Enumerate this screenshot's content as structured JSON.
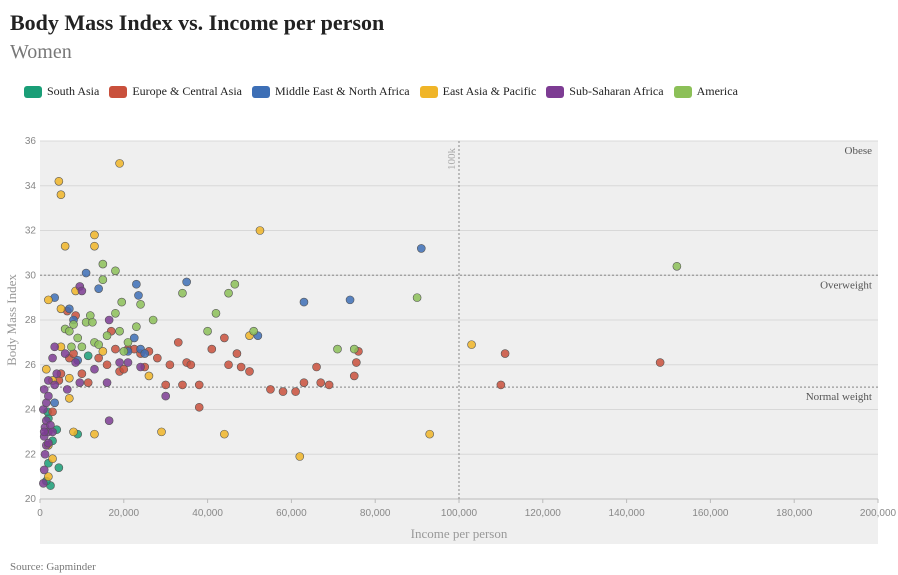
{
  "header": {
    "title": "Body Mass Index vs. Income per person",
    "subtitle": "Women"
  },
  "source": "Source: Gapminder",
  "chart_data": {
    "type": "scatter",
    "xlabel": "Income per person",
    "ylabel": "Body Mass Index",
    "xlim": [
      0,
      200000
    ],
    "ylim": [
      20,
      36
    ],
    "x_ticks": [
      0,
      20000,
      40000,
      60000,
      80000,
      100000,
      120000,
      140000,
      160000,
      180000,
      200000
    ],
    "x_tick_labels": [
      "0",
      "20,000",
      "40,000",
      "60,000",
      "80,000",
      "100,000",
      "120,000",
      "140,000",
      "160,000",
      "180,000",
      "200,000"
    ],
    "y_ticks": [
      20,
      22,
      24,
      26,
      28,
      30,
      32,
      34,
      36
    ],
    "grid": true,
    "legend_position": "top-left",
    "reference_lines": [
      {
        "axis": "x",
        "value": 100000,
        "label": "100k"
      },
      {
        "axis": "y",
        "value": 30,
        "label": "Overweight"
      },
      {
        "axis": "y",
        "value": 25,
        "label": "Normal weight"
      }
    ],
    "annotations": [
      {
        "label": "Obese",
        "x": 200000,
        "y": 36
      }
    ],
    "series": [
      {
        "name": "South Asia",
        "color": "#1a9e77",
        "points": [
          [
            2500,
            20.6
          ],
          [
            1500,
            20.8
          ],
          [
            2000,
            21.6
          ],
          [
            4500,
            21.4
          ],
          [
            3000,
            22.6
          ],
          [
            9000,
            22.9
          ],
          [
            4000,
            23.1
          ],
          [
            2000,
            23.6
          ],
          [
            1800,
            23.9
          ],
          [
            11500,
            26.4
          ]
        ]
      },
      {
        "name": "Europe & Central Asia",
        "color": "#c9503c",
        "points": [
          [
            3000,
            23.9
          ],
          [
            4500,
            25.3
          ],
          [
            5000,
            25.6
          ],
          [
            7000,
            26.3
          ],
          [
            8000,
            26.5
          ],
          [
            10000,
            25.6
          ],
          [
            11500,
            25.2
          ],
          [
            14000,
            26.3
          ],
          [
            16000,
            26.0
          ],
          [
            17000,
            27.5
          ],
          [
            18000,
            26.7
          ],
          [
            19000,
            25.7
          ],
          [
            20000,
            25.8
          ],
          [
            21000,
            26.7
          ],
          [
            22500,
            26.7
          ],
          [
            24000,
            26.5
          ],
          [
            25000,
            25.9
          ],
          [
            26000,
            26.6
          ],
          [
            28000,
            26.3
          ],
          [
            30000,
            25.1
          ],
          [
            31000,
            26.0
          ],
          [
            33000,
            27.0
          ],
          [
            34000,
            25.1
          ],
          [
            35000,
            26.1
          ],
          [
            36000,
            26.0
          ],
          [
            38000,
            25.1
          ],
          [
            38000,
            24.1
          ],
          [
            41000,
            26.7
          ],
          [
            44000,
            27.2
          ],
          [
            45000,
            26.0
          ],
          [
            47000,
            26.5
          ],
          [
            48000,
            25.9
          ],
          [
            50000,
            25.7
          ],
          [
            55000,
            24.9
          ],
          [
            58000,
            24.8
          ],
          [
            61000,
            24.8
          ],
          [
            63000,
            25.2
          ],
          [
            66000,
            25.9
          ],
          [
            67000,
            25.2
          ],
          [
            69000,
            25.1
          ],
          [
            75000,
            25.5
          ],
          [
            75500,
            26.1
          ],
          [
            76000,
            26.6
          ],
          [
            110000,
            25.1
          ],
          [
            111000,
            26.5
          ],
          [
            148000,
            26.1
          ],
          [
            8500,
            28.2
          ],
          [
            6500,
            28.4
          ]
        ]
      },
      {
        "name": "Middle East & North Africa",
        "color": "#3d6fb6",
        "points": [
          [
            3500,
            29.0
          ],
          [
            7000,
            28.5
          ],
          [
            8000,
            28.0
          ],
          [
            11000,
            30.1
          ],
          [
            14000,
            29.4
          ],
          [
            23000,
            29.6
          ],
          [
            23500,
            29.1
          ],
          [
            21000,
            26.6
          ],
          [
            24000,
            26.7
          ],
          [
            22500,
            27.2
          ],
          [
            25000,
            26.5
          ],
          [
            35000,
            29.7
          ],
          [
            52000,
            27.3
          ],
          [
            63000,
            28.8
          ],
          [
            74000,
            28.9
          ],
          [
            91000,
            31.2
          ],
          [
            9000,
            26.2
          ],
          [
            3500,
            24.3
          ]
        ]
      },
      {
        "name": "East Asia & Pacific",
        "color": "#f0b528",
        "points": [
          [
            4500,
            34.2
          ],
          [
            5000,
            33.6
          ],
          [
            6000,
            31.3
          ],
          [
            13000,
            31.8
          ],
          [
            13000,
            31.3
          ],
          [
            19000,
            35.0
          ],
          [
            2000,
            28.9
          ],
          [
            5000,
            28.5
          ],
          [
            8500,
            29.3
          ],
          [
            15000,
            26.6
          ],
          [
            1500,
            25.8
          ],
          [
            3000,
            25.3
          ],
          [
            7000,
            25.4
          ],
          [
            7000,
            24.5
          ],
          [
            13000,
            22.9
          ],
          [
            29000,
            23.0
          ],
          [
            44000,
            22.9
          ],
          [
            50000,
            27.3
          ],
          [
            52500,
            32.0
          ],
          [
            62000,
            21.9
          ],
          [
            93000,
            22.9
          ],
          [
            103000,
            26.9
          ],
          [
            2000,
            22.4
          ],
          [
            3000,
            21.8
          ],
          [
            2000,
            21.0
          ],
          [
            26000,
            25.5
          ],
          [
            8000,
            23.0
          ],
          [
            5000,
            26.8
          ]
        ]
      },
      {
        "name": "Sub-Saharan Africa",
        "color": "#7d3c93",
        "points": [
          [
            800,
            20.7
          ],
          [
            1000,
            21.3
          ],
          [
            1200,
            22.0
          ],
          [
            1500,
            22.4
          ],
          [
            1000,
            22.8
          ],
          [
            1200,
            23.2
          ],
          [
            1500,
            23.5
          ],
          [
            2000,
            23.0
          ],
          [
            2500,
            23.3
          ],
          [
            3000,
            23.0
          ],
          [
            800,
            24.0
          ],
          [
            1500,
            24.3
          ],
          [
            2000,
            24.6
          ],
          [
            1000,
            24.9
          ],
          [
            2000,
            25.3
          ],
          [
            3500,
            25.1
          ],
          [
            4000,
            25.6
          ],
          [
            3000,
            26.3
          ],
          [
            3500,
            26.8
          ],
          [
            6000,
            26.5
          ],
          [
            8500,
            26.1
          ],
          [
            9500,
            25.2
          ],
          [
            13000,
            25.8
          ],
          [
            16000,
            25.2
          ],
          [
            16500,
            28.0
          ],
          [
            6500,
            24.9
          ],
          [
            9500,
            29.5
          ],
          [
            10000,
            29.3
          ],
          [
            19000,
            26.1
          ],
          [
            21000,
            26.1
          ],
          [
            24000,
            25.9
          ],
          [
            30000,
            24.6
          ],
          [
            16500,
            23.5
          ],
          [
            2000,
            22.5
          ],
          [
            1000,
            23.0
          ]
        ]
      },
      {
        "name": "America",
        "color": "#8cc058",
        "points": [
          [
            6000,
            27.6
          ],
          [
            7000,
            27.5
          ],
          [
            8000,
            27.8
          ],
          [
            9000,
            27.2
          ],
          [
            10000,
            26.8
          ],
          [
            11000,
            27.9
          ],
          [
            12000,
            28.2
          ],
          [
            13000,
            27.0
          ],
          [
            14000,
            26.9
          ],
          [
            15000,
            30.5
          ],
          [
            15000,
            29.8
          ],
          [
            16000,
            27.3
          ],
          [
            18000,
            28.3
          ],
          [
            18000,
            30.2
          ],
          [
            19000,
            27.5
          ],
          [
            19500,
            28.8
          ],
          [
            20000,
            26.6
          ],
          [
            21000,
            27.0
          ],
          [
            23000,
            27.7
          ],
          [
            24000,
            28.7
          ],
          [
            27000,
            28.0
          ],
          [
            34000,
            29.2
          ],
          [
            40000,
            27.5
          ],
          [
            42000,
            28.3
          ],
          [
            45000,
            29.2
          ],
          [
            46500,
            29.6
          ],
          [
            51000,
            27.5
          ],
          [
            71000,
            26.7
          ],
          [
            75000,
            26.7
          ],
          [
            90000,
            29.0
          ],
          [
            152000,
            30.4
          ],
          [
            7500,
            26.8
          ],
          [
            12500,
            27.9
          ]
        ]
      }
    ]
  }
}
